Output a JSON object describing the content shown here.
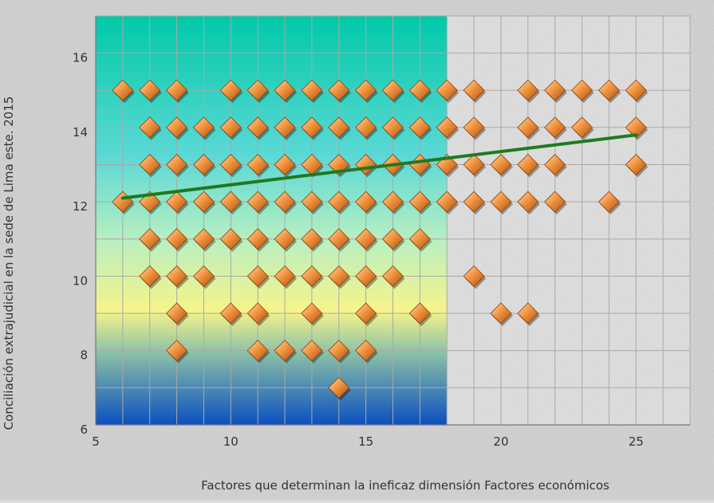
{
  "chart_data": {
    "type": "scatter",
    "title": "",
    "xlabel": "Factores  que determinan la ineficaz dimensión Factores económicos",
    "ylabel": "Conciliación extrajudicial en la sede de Lima este. 2015",
    "xlim": [
      5,
      27
    ],
    "ylim": [
      6,
      17
    ],
    "x_ticks": [
      5,
      10,
      15,
      20,
      25
    ],
    "y_ticks": [
      6,
      8,
      10,
      12,
      14,
      16
    ],
    "grid": true,
    "legend": "none",
    "colors": {
      "marker": "#e8893a",
      "trendline": "#1f7a1f",
      "grid": "#a9a9a9"
    },
    "points": [
      [
        6,
        15
      ],
      [
        7,
        15
      ],
      [
        8,
        15
      ],
      [
        10,
        15
      ],
      [
        11,
        15
      ],
      [
        12,
        15
      ],
      [
        13,
        15
      ],
      [
        14,
        15
      ],
      [
        15,
        15
      ],
      [
        16,
        15
      ],
      [
        17,
        15
      ],
      [
        18,
        15
      ],
      [
        19,
        15
      ],
      [
        21,
        15
      ],
      [
        22,
        15
      ],
      [
        23,
        15
      ],
      [
        24,
        15
      ],
      [
        25,
        15
      ],
      [
        7,
        14
      ],
      [
        8,
        14
      ],
      [
        9,
        14
      ],
      [
        10,
        14
      ],
      [
        11,
        14
      ],
      [
        12,
        14
      ],
      [
        13,
        14
      ],
      [
        14,
        14
      ],
      [
        15,
        14
      ],
      [
        16,
        14
      ],
      [
        17,
        14
      ],
      [
        18,
        14
      ],
      [
        19,
        14
      ],
      [
        21,
        14
      ],
      [
        22,
        14
      ],
      [
        23,
        14
      ],
      [
        25,
        14
      ],
      [
        7,
        13
      ],
      [
        8,
        13
      ],
      [
        9,
        13
      ],
      [
        10,
        13
      ],
      [
        11,
        13
      ],
      [
        12,
        13
      ],
      [
        13,
        13
      ],
      [
        14,
        13
      ],
      [
        15,
        13
      ],
      [
        16,
        13
      ],
      [
        17,
        13
      ],
      [
        18,
        13
      ],
      [
        19,
        13
      ],
      [
        20,
        13
      ],
      [
        21,
        13
      ],
      [
        22,
        13
      ],
      [
        25,
        13
      ],
      [
        6,
        12
      ],
      [
        7,
        12
      ],
      [
        8,
        12
      ],
      [
        9,
        12
      ],
      [
        10,
        12
      ],
      [
        11,
        12
      ],
      [
        12,
        12
      ],
      [
        13,
        12
      ],
      [
        14,
        12
      ],
      [
        15,
        12
      ],
      [
        16,
        12
      ],
      [
        17,
        12
      ],
      [
        18,
        12
      ],
      [
        19,
        12
      ],
      [
        20,
        12
      ],
      [
        21,
        12
      ],
      [
        22,
        12
      ],
      [
        24,
        12
      ],
      [
        7,
        11
      ],
      [
        8,
        11
      ],
      [
        9,
        11
      ],
      [
        10,
        11
      ],
      [
        11,
        11
      ],
      [
        12,
        11
      ],
      [
        13,
        11
      ],
      [
        14,
        11
      ],
      [
        15,
        11
      ],
      [
        16,
        11
      ],
      [
        17,
        11
      ],
      [
        7,
        10
      ],
      [
        8,
        10
      ],
      [
        9,
        10
      ],
      [
        11,
        10
      ],
      [
        12,
        10
      ],
      [
        13,
        10
      ],
      [
        14,
        10
      ],
      [
        15,
        10
      ],
      [
        16,
        10
      ],
      [
        19,
        10
      ],
      [
        8,
        9
      ],
      [
        10,
        9
      ],
      [
        11,
        9
      ],
      [
        13,
        9
      ],
      [
        15,
        9
      ],
      [
        17,
        9
      ],
      [
        20,
        9
      ],
      [
        21,
        9
      ],
      [
        8,
        8
      ],
      [
        11,
        8
      ],
      [
        12,
        8
      ],
      [
        13,
        8
      ],
      [
        14,
        8
      ],
      [
        15,
        8
      ],
      [
        14,
        7
      ]
    ],
    "trendline": {
      "x": [
        6,
        25
      ],
      "y": [
        12.1,
        13.8
      ]
    }
  }
}
